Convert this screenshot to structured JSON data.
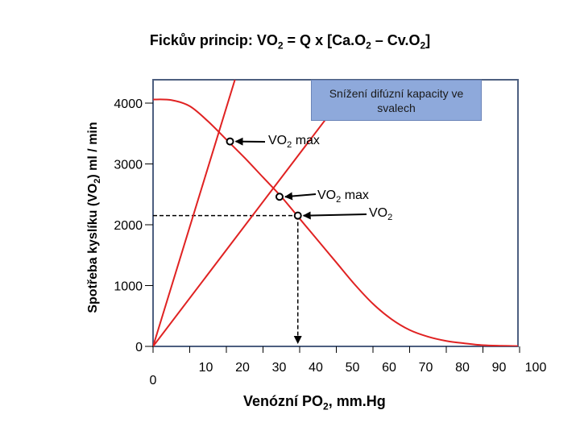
{
  "chart_data": {
    "type": "line",
    "title": {
      "pre": "Fickův princip:  VO",
      "sub": "2",
      "post": " = Q x [Ca.O",
      "sub2": "2",
      "post2": " – Cv.O",
      "sub3": "2",
      "post3": "]"
    },
    "xlabel": {
      "pre": "Venózní PO",
      "sub": "2",
      "post": ", mm.Hg"
    },
    "ylabel": {
      "pre": "Spotřeba kyslíku (VO",
      "sub": "2",
      "post": ") ml / min"
    },
    "xlim": [
      0,
      100
    ],
    "ylim": [
      0,
      4000
    ],
    "x_ticks": [
      {
        "value": 0,
        "label": "0"
      },
      {
        "value": 10,
        "label": "10"
      },
      {
        "value": 20,
        "label": "20"
      },
      {
        "value": 30,
        "label": "30"
      },
      {
        "value": 40,
        "label": "40"
      },
      {
        "value": 50,
        "label": "50"
      },
      {
        "value": 60,
        "label": "60"
      },
      {
        "value": 70,
        "label": "70"
      },
      {
        "value": 80,
        "label": "80"
      },
      {
        "value": 90,
        "label": "90"
      },
      {
        "value": 100,
        "label": "100"
      }
    ],
    "y_ticks": [
      {
        "value": 0,
        "label": "0"
      },
      {
        "value": 1000,
        "label": "1000"
      },
      {
        "value": 2000,
        "label": "2000"
      },
      {
        "value": 3000,
        "label": "3000"
      },
      {
        "value": 4000,
        "label": "4000"
      }
    ],
    "series": [
      {
        "color": "#e02222",
        "x": [
          0,
          5,
          10,
          15,
          20,
          25,
          30,
          35,
          40,
          45,
          50,
          55,
          60,
          65,
          70,
          75,
          80,
          85,
          90,
          95,
          100
        ],
        "y": [
          4060,
          4050,
          3950,
          3700,
          3400,
          3100,
          2780,
          2460,
          2100,
          1740,
          1380,
          1020,
          700,
          450,
          270,
          160,
          90,
          50,
          20,
          10,
          5
        ]
      },
      {
        "color": "#e02222",
        "x": [
          0,
          27
        ],
        "y": [
          0,
          5300
        ]
      },
      {
        "color": "#e02222",
        "x": [
          0,
          55
        ],
        "y": [
          0,
          4360
        ]
      }
    ],
    "points": [
      {
        "x": 21,
        "y": 3370
      },
      {
        "x": 34.5,
        "y": 2460
      },
      {
        "x": 39.5,
        "y": 2150
      }
    ],
    "guides": {
      "x": 39.5,
      "y": 2150,
      "color": "#000000"
    },
    "annotations": [
      {
        "pre": "VO",
        "sub": "2",
        "post": " max"
      },
      {
        "pre": "VO",
        "sub": "2",
        "post": " max"
      },
      {
        "pre": "VO",
        "sub": "2",
        "post": ""
      }
    ],
    "callout_text": "Snížení difúzní kapacity ve svalech",
    "grid": false
  }
}
